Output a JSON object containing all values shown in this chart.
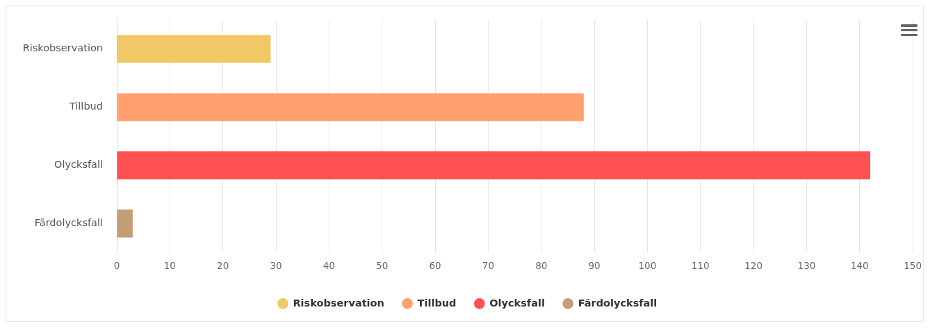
{
  "chart_data": {
    "type": "bar",
    "orientation": "horizontal",
    "stacked": true,
    "categories": [
      "Riskobservation",
      "Tillbud",
      "Olycksfall",
      "Färdolycksfall"
    ],
    "series": [
      {
        "name": "Riskobservation",
        "color": "#f0c865",
        "values": [
          29,
          null,
          null,
          null
        ]
      },
      {
        "name": "Tillbud",
        "color": "#ffa06e",
        "values": [
          null,
          88,
          null,
          null
        ]
      },
      {
        "name": "Olycksfall",
        "color": "#ff5151",
        "values": [
          null,
          null,
          142,
          null
        ]
      },
      {
        "name": "Färdolycksfall",
        "color": "#c59d75",
        "values": [
          null,
          null,
          null,
          3
        ]
      }
    ],
    "xlim": [
      0,
      150
    ],
    "xticks": [
      0,
      10,
      20,
      30,
      40,
      50,
      60,
      70,
      80,
      90,
      100,
      110,
      120,
      130,
      140,
      150
    ],
    "grid": "x",
    "legend": "bottom"
  }
}
